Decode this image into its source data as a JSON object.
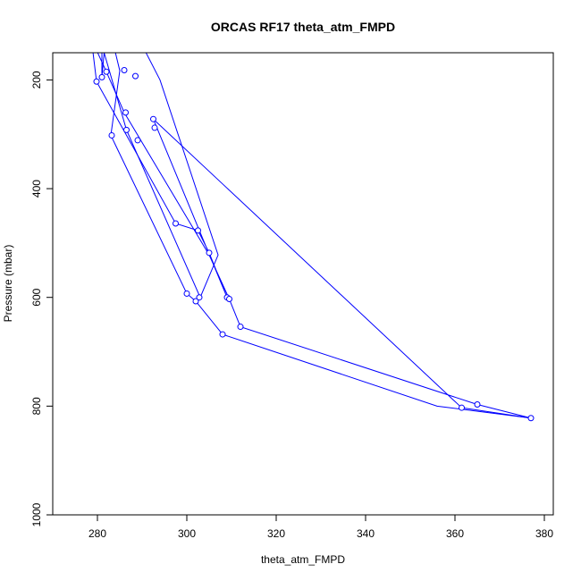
{
  "chart_data": {
    "type": "line",
    "title": "ORCAS RF17 theta_atm_FMPD",
    "xlabel": "theta_atm_FMPD",
    "ylabel": "Pressure (mbar)",
    "xlim": [
      270,
      382
    ],
    "ylim": [
      1000,
      150
    ],
    "y_reversed": true,
    "x_ticks": [
      280,
      300,
      320,
      340,
      360,
      380
    ],
    "y_ticks": [
      200,
      400,
      600,
      800,
      1000
    ],
    "grid": false,
    "legend": "none",
    "color": "#0000ff",
    "marker": "open-circle",
    "series": [
      {
        "x": [
          278.5,
          279.8,
          297.5,
          302.5,
          305.0,
          309.0,
          292.5,
          361.5,
          377.0,
          365.0,
          312.0,
          309.5,
          305.0,
          286.0,
          282.0,
          279.5
        ],
        "y": [
          115,
          203,
          464,
          477,
          518,
          600,
          272,
          803,
          822,
          797,
          654,
          603,
          522,
          260,
          185,
          140
        ]
      },
      {
        "x": [
          283.0,
          285.0,
          283.0,
          300.0,
          302.0,
          308.0,
          356.0,
          377.0
        ],
        "y": [
          115,
          183,
          302,
          593,
          607,
          668,
          800,
          822
        ]
      },
      {
        "x": [
          281.0,
          281.0,
          281.5,
          286.5,
          303.0,
          307.0,
          294.0,
          289.0,
          288.0
        ],
        "y": [
          115,
          195,
          150,
          292,
          600,
          522,
          200,
          120,
          115
        ]
      }
    ],
    "points": {
      "x": [
        279.8,
        281.0,
        282.0,
        286.0,
        288.5,
        286.3,
        283.2,
        286.5,
        289.0,
        292.5,
        292.8,
        297.5,
        302.5,
        305.0,
        300.0,
        302.0,
        302.8,
        309.0,
        309.5,
        312.0,
        308.0,
        361.5,
        365.0,
        377.0
      ],
      "y": [
        203,
        195,
        185,
        182,
        193,
        260,
        302,
        292,
        311,
        272,
        288,
        464,
        477,
        518,
        593,
        607,
        600,
        600,
        603,
        654,
        668,
        803,
        797,
        822
      ]
    }
  }
}
